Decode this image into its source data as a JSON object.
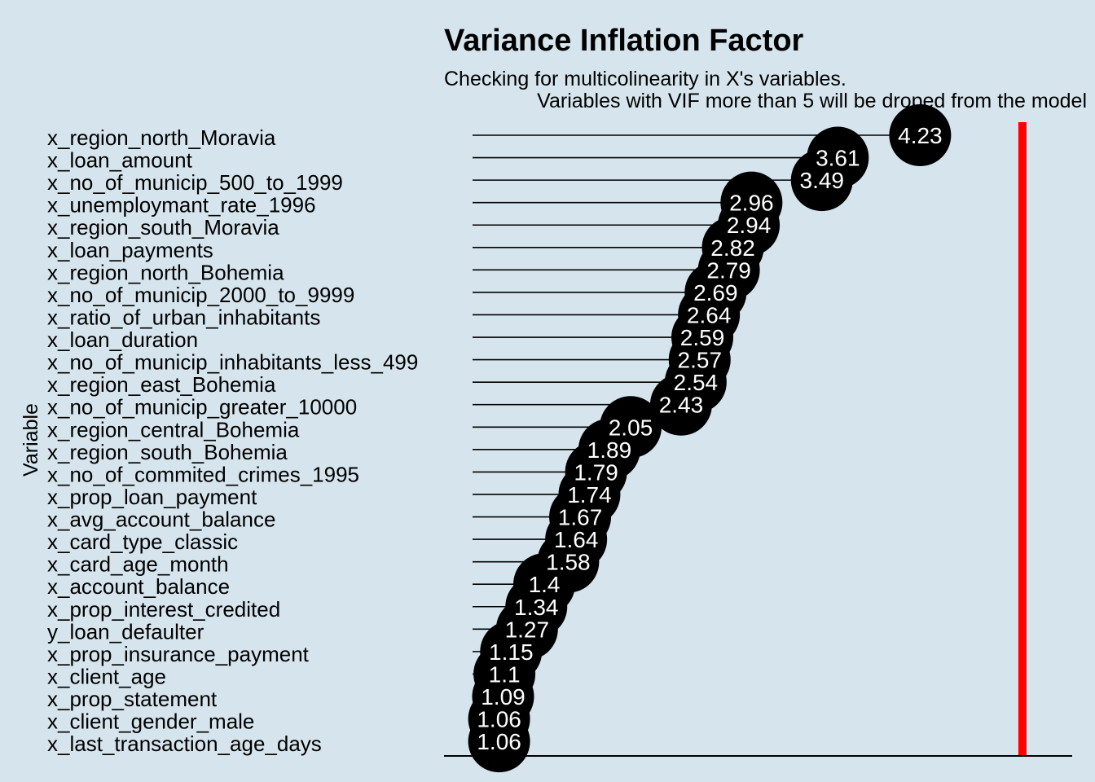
{
  "chart_data": {
    "type": "lollipop",
    "title": "Variance Inflation Factor",
    "subtitle_lines": [
      "Checking for multicolinearity in X's variables.",
      "Variables with VIF more than 5 will be droped from the model"
    ],
    "xlabel": "",
    "ylabel": "Variable",
    "threshold": 5,
    "threshold_color": "#ff0000",
    "xlim": [
      0.86,
      5.16
    ],
    "background": "#d6e5ed",
    "point_color": "#000000",
    "label_color": "#ffffff",
    "categories": [
      "x_region_north_Moravia",
      "x_loan_amount",
      "x_no_of_municip_500_to_1999",
      "x_unemploymant_rate_1996",
      "x_region_south_Moravia",
      "x_loan_payments",
      "x_region_north_Bohemia",
      "x_no_of_municip_2000_to_9999",
      "x_ratio_of_urban_inhabitants",
      "x_loan_duration",
      "x_no_of_municip_inhabitants_less_499",
      "x_region_east_Bohemia",
      "x_no_of_municip_greater_10000",
      "x_region_central_Bohemia",
      "x_region_south_Bohemia",
      "x_no_of_commited_crimes_1995",
      "x_prop_loan_payment",
      "x_avg_account_balance",
      "x_card_type_classic",
      "x_card_age_month",
      "x_account_balance",
      "x_prop_interest_credited",
      "y_loan_defaulter",
      "x_prop_insurance_payment",
      "x_client_age",
      "x_prop_statement",
      "x_client_gender_male",
      "x_last_transaction_age_days"
    ],
    "values": [
      4.23,
      3.61,
      3.49,
      2.96,
      2.94,
      2.82,
      2.79,
      2.69,
      2.64,
      2.59,
      2.57,
      2.54,
      2.43,
      2.05,
      1.89,
      1.79,
      1.74,
      1.67,
      1.64,
      1.58,
      1.4,
      1.34,
      1.27,
      1.15,
      1.1,
      1.09,
      1.06,
      1.06
    ],
    "value_labels": [
      "4.23",
      "3.61",
      "3.49",
      "2.96",
      "2.94",
      "2.82",
      "2.79",
      "2.69",
      "2.64",
      "2.59",
      "2.57",
      "2.54",
      "2.43",
      "2.05",
      "1.89",
      "1.79",
      "1.74",
      "1.67",
      "1.64",
      "1.58",
      "1.4",
      "1.34",
      "1.27",
      "1.15",
      "1.1",
      "1.09",
      "1.06",
      "1.06"
    ]
  }
}
